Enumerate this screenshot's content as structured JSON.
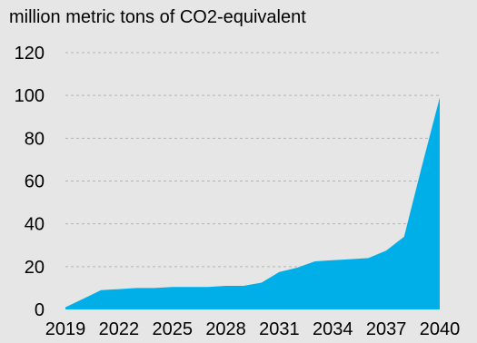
{
  "chart_data": {
    "type": "area",
    "ylabel": "million metric tons of CO2-equivalent",
    "x": [
      2019,
      2020,
      2021,
      2022,
      2023,
      2024,
      2025,
      2026,
      2027,
      2028,
      2029,
      2030,
      2031,
      2032,
      2033,
      2034,
      2035,
      2036,
      2037,
      2038,
      2039,
      2040
    ],
    "x_ticks": [
      "2019",
      "2022",
      "2025",
      "2028",
      "2031",
      "2034",
      "2037",
      "2040"
    ],
    "y_ticks": [
      "0",
      "20",
      "40",
      "60",
      "80",
      "100",
      "120"
    ],
    "ylim": [
      0,
      120
    ],
    "grid": true,
    "legend": "none",
    "series": [
      {
        "values": [
          1,
          5,
          9,
          9.5,
          10,
          10,
          10.5,
          10.5,
          10.5,
          11,
          11,
          12.5,
          17.5,
          19.5,
          22.5,
          23,
          23.5,
          24,
          27.5,
          34,
          67,
          99
        ],
        "color": "#00aee8"
      }
    ]
  }
}
